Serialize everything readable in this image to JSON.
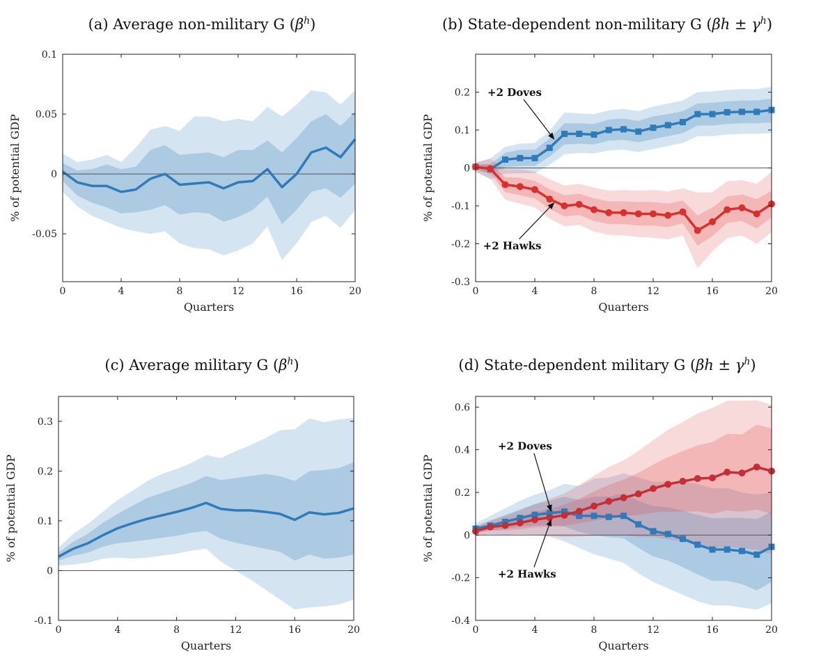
{
  "chart_data": [
    {
      "type": "line",
      "title": "(a) Average non-military G (",
      "title_math": "β",
      "title_sup": "h",
      "title_tail": ")",
      "xlabel": "Quarters",
      "ylabel": "% of potential GDP",
      "xlim": [
        0,
        20
      ],
      "ylim": [
        -0.09,
        0.1
      ],
      "xticks": [
        0,
        4,
        8,
        12,
        16,
        20
      ],
      "yticks": [
        -0.05,
        0,
        0.05,
        0.1
      ],
      "ytick_labels": [
        "-0.05",
        "0",
        "0.05",
        "0.1"
      ],
      "series": [
        {
          "color": "#2f7ab8",
          "band_color": "#2f7ab8",
          "marker": "none",
          "x": [
            0,
            1,
            2,
            3,
            4,
            5,
            6,
            7,
            8,
            9,
            10,
            11,
            12,
            13,
            14,
            15,
            16,
            17,
            18,
            19,
            20
          ],
          "values": [
            0.002,
            -0.007,
            -0.01,
            -0.01,
            -0.015,
            -0.013,
            -0.004,
            0.0,
            -0.009,
            -0.008,
            -0.007,
            -0.012,
            -0.007,
            -0.006,
            0.004,
            -0.011,
            0.0,
            0.018,
            0.022,
            0.014,
            0.029
          ],
          "inner_lo": [
            -0.006,
            -0.018,
            -0.024,
            -0.028,
            -0.033,
            -0.032,
            -0.03,
            -0.026,
            -0.034,
            -0.032,
            -0.033,
            -0.04,
            -0.036,
            -0.03,
            -0.019,
            -0.042,
            -0.03,
            -0.015,
            -0.012,
            -0.02,
            -0.008
          ],
          "inner_hi": [
            0.009,
            0.003,
            0.004,
            0.008,
            0.004,
            0.006,
            0.02,
            0.024,
            0.016,
            0.017,
            0.018,
            0.014,
            0.02,
            0.02,
            0.028,
            0.018,
            0.03,
            0.044,
            0.05,
            0.04,
            0.052
          ],
          "outer_lo": [
            -0.015,
            -0.027,
            -0.035,
            -0.04,
            -0.045,
            -0.048,
            -0.05,
            -0.048,
            -0.058,
            -0.062,
            -0.063,
            -0.068,
            -0.064,
            -0.058,
            -0.044,
            -0.072,
            -0.058,
            -0.04,
            -0.035,
            -0.045,
            -0.03
          ],
          "outer_hi": [
            0.017,
            0.01,
            0.012,
            0.016,
            0.01,
            0.022,
            0.037,
            0.04,
            0.036,
            0.048,
            0.048,
            0.044,
            0.046,
            0.044,
            0.056,
            0.048,
            0.058,
            0.07,
            0.068,
            0.058,
            0.07
          ]
        }
      ],
      "annotations": []
    },
    {
      "type": "line",
      "title": "(b) State-dependent non-military G (",
      "title_math": "βh ± γ",
      "title_sup": "h",
      "title_tail": ")",
      "xlabel": "Quarters",
      "ylabel": "% of potential GDP",
      "xlim": [
        0,
        20
      ],
      "ylim": [
        -0.3,
        0.3
      ],
      "xticks": [
        0,
        4,
        8,
        12,
        16,
        20
      ],
      "yticks": [
        -0.3,
        -0.2,
        -0.1,
        0,
        0.1,
        0.2
      ],
      "ytick_labels": [
        "-0.3",
        "-0.2",
        "-0.1",
        "0",
        "0.1",
        "0.2"
      ],
      "series": [
        {
          "color": "#2f7ab8",
          "band_color": "#2f7ab8",
          "marker": "square",
          "x": [
            0,
            1,
            2,
            3,
            4,
            5,
            6,
            7,
            8,
            9,
            10,
            11,
            12,
            13,
            14,
            15,
            16,
            17,
            18,
            19,
            20
          ],
          "values": [
            0.003,
            -0.003,
            0.022,
            0.026,
            0.026,
            0.053,
            0.09,
            0.09,
            0.088,
            0.1,
            0.102,
            0.096,
            0.106,
            0.113,
            0.121,
            0.142,
            0.142,
            0.147,
            0.148,
            0.148,
            0.153
          ],
          "inner_lo": [
            -0.004,
            -0.016,
            0.002,
            0.005,
            0.005,
            0.03,
            0.062,
            0.064,
            0.062,
            0.072,
            0.074,
            0.068,
            0.076,
            0.084,
            0.092,
            0.112,
            0.112,
            0.116,
            0.118,
            0.118,
            0.12
          ],
          "inner_hi": [
            0.009,
            0.01,
            0.04,
            0.048,
            0.048,
            0.078,
            0.118,
            0.118,
            0.116,
            0.128,
            0.13,
            0.124,
            0.136,
            0.142,
            0.15,
            0.17,
            0.172,
            0.176,
            0.178,
            0.178,
            0.183
          ],
          "outer_lo": [
            -0.01,
            -0.03,
            -0.015,
            -0.014,
            -0.014,
            0.008,
            0.036,
            0.04,
            0.038,
            0.046,
            0.048,
            0.042,
            0.05,
            0.058,
            0.066,
            0.084,
            0.084,
            0.088,
            0.09,
            0.09,
            0.092
          ],
          "outer_hi": [
            0.014,
            0.025,
            0.056,
            0.064,
            0.066,
            0.098,
            0.146,
            0.144,
            0.142,
            0.152,
            0.156,
            0.15,
            0.162,
            0.17,
            0.178,
            0.2,
            0.202,
            0.206,
            0.208,
            0.208,
            0.214
          ]
        },
        {
          "color": "#d6312f",
          "band_color": "#e0484a",
          "marker": "circle",
          "x": [
            0,
            1,
            2,
            3,
            4,
            5,
            6,
            7,
            8,
            9,
            10,
            11,
            12,
            13,
            14,
            15,
            16,
            17,
            18,
            19,
            20
          ],
          "values": [
            0.003,
            -0.002,
            -0.044,
            -0.049,
            -0.057,
            -0.082,
            -0.1,
            -0.096,
            -0.11,
            -0.118,
            -0.118,
            -0.121,
            -0.121,
            -0.125,
            -0.116,
            -0.165,
            -0.142,
            -0.11,
            -0.105,
            -0.121,
            -0.095
          ],
          "inner_lo": [
            -0.004,
            -0.014,
            -0.064,
            -0.072,
            -0.08,
            -0.108,
            -0.128,
            -0.124,
            -0.14,
            -0.148,
            -0.148,
            -0.152,
            -0.152,
            -0.156,
            -0.146,
            -0.205,
            -0.18,
            -0.145,
            -0.14,
            -0.16,
            -0.13
          ],
          "inner_hi": [
            0.009,
            0.01,
            -0.024,
            -0.026,
            -0.034,
            -0.056,
            -0.072,
            -0.068,
            -0.08,
            -0.088,
            -0.088,
            -0.09,
            -0.09,
            -0.094,
            -0.086,
            -0.125,
            -0.104,
            -0.075,
            -0.07,
            -0.082,
            -0.06
          ],
          "outer_lo": [
            -0.01,
            -0.028,
            -0.084,
            -0.094,
            -0.104,
            -0.134,
            -0.154,
            -0.15,
            -0.168,
            -0.176,
            -0.178,
            -0.182,
            -0.184,
            -0.188,
            -0.178,
            -0.265,
            -0.22,
            -0.185,
            -0.178,
            -0.2,
            -0.17
          ],
          "outer_hi": [
            0.014,
            0.024,
            -0.004,
            -0.004,
            -0.01,
            -0.03,
            -0.046,
            -0.042,
            -0.052,
            -0.06,
            -0.058,
            -0.06,
            -0.058,
            -0.062,
            -0.054,
            -0.065,
            -0.064,
            -0.035,
            -0.032,
            -0.042,
            -0.01
          ]
        }
      ],
      "annotations": [
        {
          "text": "+2 Doves",
          "x": 0.8,
          "y": 0.19,
          "arrow_to": [
            5.3,
            0.076
          ]
        },
        {
          "text": "+2 Hawks",
          "x": 0.5,
          "y": -0.215,
          "arrow_to": [
            5.3,
            -0.092
          ]
        }
      ]
    },
    {
      "type": "line",
      "title": "(c) Average military G (",
      "title_math": "β",
      "title_sup": "h",
      "title_tail": ")",
      "xlabel": "Quarters",
      "ylabel": "% of potential GDP",
      "xlim": [
        0,
        20
      ],
      "ylim": [
        -0.1,
        0.35
      ],
      "xticks": [
        0,
        4,
        8,
        12,
        16,
        20
      ],
      "yticks": [
        -0.1,
        0,
        0.1,
        0.2,
        0.3
      ],
      "ytick_labels": [
        "-0.1",
        "0",
        "0.1",
        "0.2",
        "0.3"
      ],
      "series": [
        {
          "color": "#2f7ab8",
          "band_color": "#2f7ab8",
          "marker": "none",
          "x": [
            0,
            1,
            2,
            3,
            4,
            5,
            6,
            7,
            8,
            9,
            10,
            11,
            12,
            13,
            14,
            15,
            16,
            17,
            18,
            19,
            20
          ],
          "values": [
            0.028,
            0.044,
            0.055,
            0.071,
            0.085,
            0.095,
            0.104,
            0.111,
            0.118,
            0.126,
            0.136,
            0.124,
            0.121,
            0.121,
            0.118,
            0.114,
            0.102,
            0.117,
            0.113,
            0.116,
            0.125
          ],
          "inner_lo": [
            0.02,
            0.03,
            0.036,
            0.048,
            0.055,
            0.058,
            0.062,
            0.066,
            0.07,
            0.076,
            0.08,
            0.064,
            0.056,
            0.05,
            0.044,
            0.038,
            0.02,
            0.032,
            0.024,
            0.026,
            0.032
          ],
          "inner_hi": [
            0.036,
            0.058,
            0.074,
            0.096,
            0.114,
            0.13,
            0.146,
            0.156,
            0.166,
            0.176,
            0.19,
            0.182,
            0.186,
            0.19,
            0.194,
            0.19,
            0.18,
            0.2,
            0.202,
            0.206,
            0.218
          ],
          "outer_lo": [
            0.01,
            0.012,
            0.016,
            0.024,
            0.026,
            0.024,
            0.026,
            0.03,
            0.034,
            0.04,
            0.044,
            0.018,
            0.0,
            -0.018,
            -0.038,
            -0.058,
            -0.078,
            -0.074,
            -0.072,
            -0.068,
            -0.058
          ],
          "outer_hi": [
            0.046,
            0.074,
            0.094,
            0.118,
            0.142,
            0.16,
            0.18,
            0.194,
            0.204,
            0.216,
            0.232,
            0.226,
            0.24,
            0.252,
            0.266,
            0.282,
            0.284,
            0.306,
            0.298,
            0.304,
            0.306
          ]
        }
      ],
      "annotations": []
    },
    {
      "type": "line",
      "title": "(d) State-dependent military G (",
      "title_math": "βh ± γ",
      "title_sup": "h",
      "title_tail": ")",
      "xlabel": "Quarters",
      "ylabel": "% of potential GDP",
      "xlim": [
        0,
        20
      ],
      "ylim": [
        -0.4,
        0.65
      ],
      "xticks": [
        0,
        4,
        8,
        12,
        16,
        20
      ],
      "yticks": [
        -0.4,
        -0.2,
        0,
        0.2,
        0.4,
        0.6
      ],
      "ytick_labels": [
        "-0.4",
        "-0.2",
        "0",
        "0.2",
        "0.4",
        "0.6"
      ],
      "series": [
        {
          "color": "#2f7ab8",
          "band_color": "#2f7ab8",
          "marker": "square",
          "x": [
            0,
            1,
            2,
            3,
            4,
            5,
            6,
            7,
            8,
            9,
            10,
            11,
            12,
            13,
            14,
            15,
            16,
            17,
            18,
            19,
            20
          ],
          "values": [
            0.03,
            0.044,
            0.062,
            0.08,
            0.095,
            0.103,
            0.11,
            0.09,
            0.09,
            0.085,
            0.09,
            0.05,
            0.018,
            0.005,
            -0.018,
            -0.045,
            -0.068,
            -0.068,
            -0.075,
            -0.092,
            -0.055
          ],
          "inner_lo": [
            0.018,
            0.022,
            0.03,
            0.04,
            0.045,
            0.045,
            0.04,
            0.015,
            0.0,
            -0.01,
            -0.015,
            -0.06,
            -0.1,
            -0.12,
            -0.15,
            -0.185,
            -0.215,
            -0.215,
            -0.23,
            -0.26,
            -0.22
          ],
          "inner_hi": [
            0.042,
            0.066,
            0.094,
            0.12,
            0.145,
            0.16,
            0.18,
            0.165,
            0.18,
            0.18,
            0.195,
            0.16,
            0.136,
            0.13,
            0.114,
            0.095,
            0.079,
            0.08,
            0.08,
            0.075,
            0.11
          ],
          "outer_lo": [
            0.005,
            0.0,
            0.0,
            0.005,
            0.0,
            -0.008,
            -0.03,
            -0.06,
            -0.09,
            -0.11,
            -0.13,
            -0.18,
            -0.22,
            -0.25,
            -0.28,
            -0.31,
            -0.33,
            -0.33,
            -0.34,
            -0.35,
            -0.32
          ],
          "outer_hi": [
            0.055,
            0.09,
            0.125,
            0.16,
            0.19,
            0.21,
            0.24,
            0.23,
            0.265,
            0.27,
            0.29,
            0.27,
            0.25,
            0.25,
            0.25,
            0.24,
            0.22,
            0.22,
            0.2,
            0.19,
            0.2
          ]
        },
        {
          "color": "#c42f36",
          "band_color": "#e0484a",
          "marker": "circle",
          "x": [
            0,
            1,
            2,
            3,
            4,
            5,
            6,
            7,
            8,
            9,
            10,
            11,
            12,
            13,
            14,
            15,
            16,
            17,
            18,
            19,
            20
          ],
          "values": [
            0.018,
            0.038,
            0.045,
            0.057,
            0.072,
            0.082,
            0.093,
            0.112,
            0.136,
            0.158,
            0.175,
            0.193,
            0.218,
            0.238,
            0.252,
            0.265,
            0.268,
            0.295,
            0.291,
            0.319,
            0.3
          ],
          "inner_lo": [
            0.008,
            0.022,
            0.022,
            0.028,
            0.036,
            0.04,
            0.044,
            0.055,
            0.068,
            0.08,
            0.09,
            0.094,
            0.105,
            0.11,
            0.11,
            0.11,
            0.1,
            0.115,
            0.11,
            0.12,
            0.098
          ],
          "inner_hi": [
            0.028,
            0.054,
            0.068,
            0.086,
            0.108,
            0.124,
            0.142,
            0.17,
            0.204,
            0.236,
            0.26,
            0.292,
            0.33,
            0.366,
            0.394,
            0.42,
            0.436,
            0.475,
            0.472,
            0.518,
            0.5
          ],
          "outer_lo": [
            -0.005,
            0.005,
            0.0,
            -0.002,
            0.0,
            -0.005,
            -0.01,
            -0.008,
            -0.005,
            -0.002,
            0.0,
            -0.01,
            -0.01,
            -0.02,
            -0.03,
            -0.04,
            -0.06,
            -0.055,
            -0.06,
            -0.07,
            -0.09
          ],
          "outer_hi": [
            0.04,
            0.07,
            0.09,
            0.115,
            0.145,
            0.17,
            0.195,
            0.235,
            0.278,
            0.32,
            0.35,
            0.395,
            0.445,
            0.494,
            0.53,
            0.57,
            0.596,
            0.63,
            0.63,
            0.632,
            0.61
          ]
        }
      ],
      "annotations": [
        {
          "text": "+2 Doves",
          "x": 1.5,
          "y": 0.4,
          "arrow_to": [
            5.1,
            0.112
          ]
        },
        {
          "text": "+2 Hawks",
          "x": 1.5,
          "y": -0.2,
          "arrow_to": [
            5.1,
            0.072
          ]
        }
      ]
    }
  ]
}
